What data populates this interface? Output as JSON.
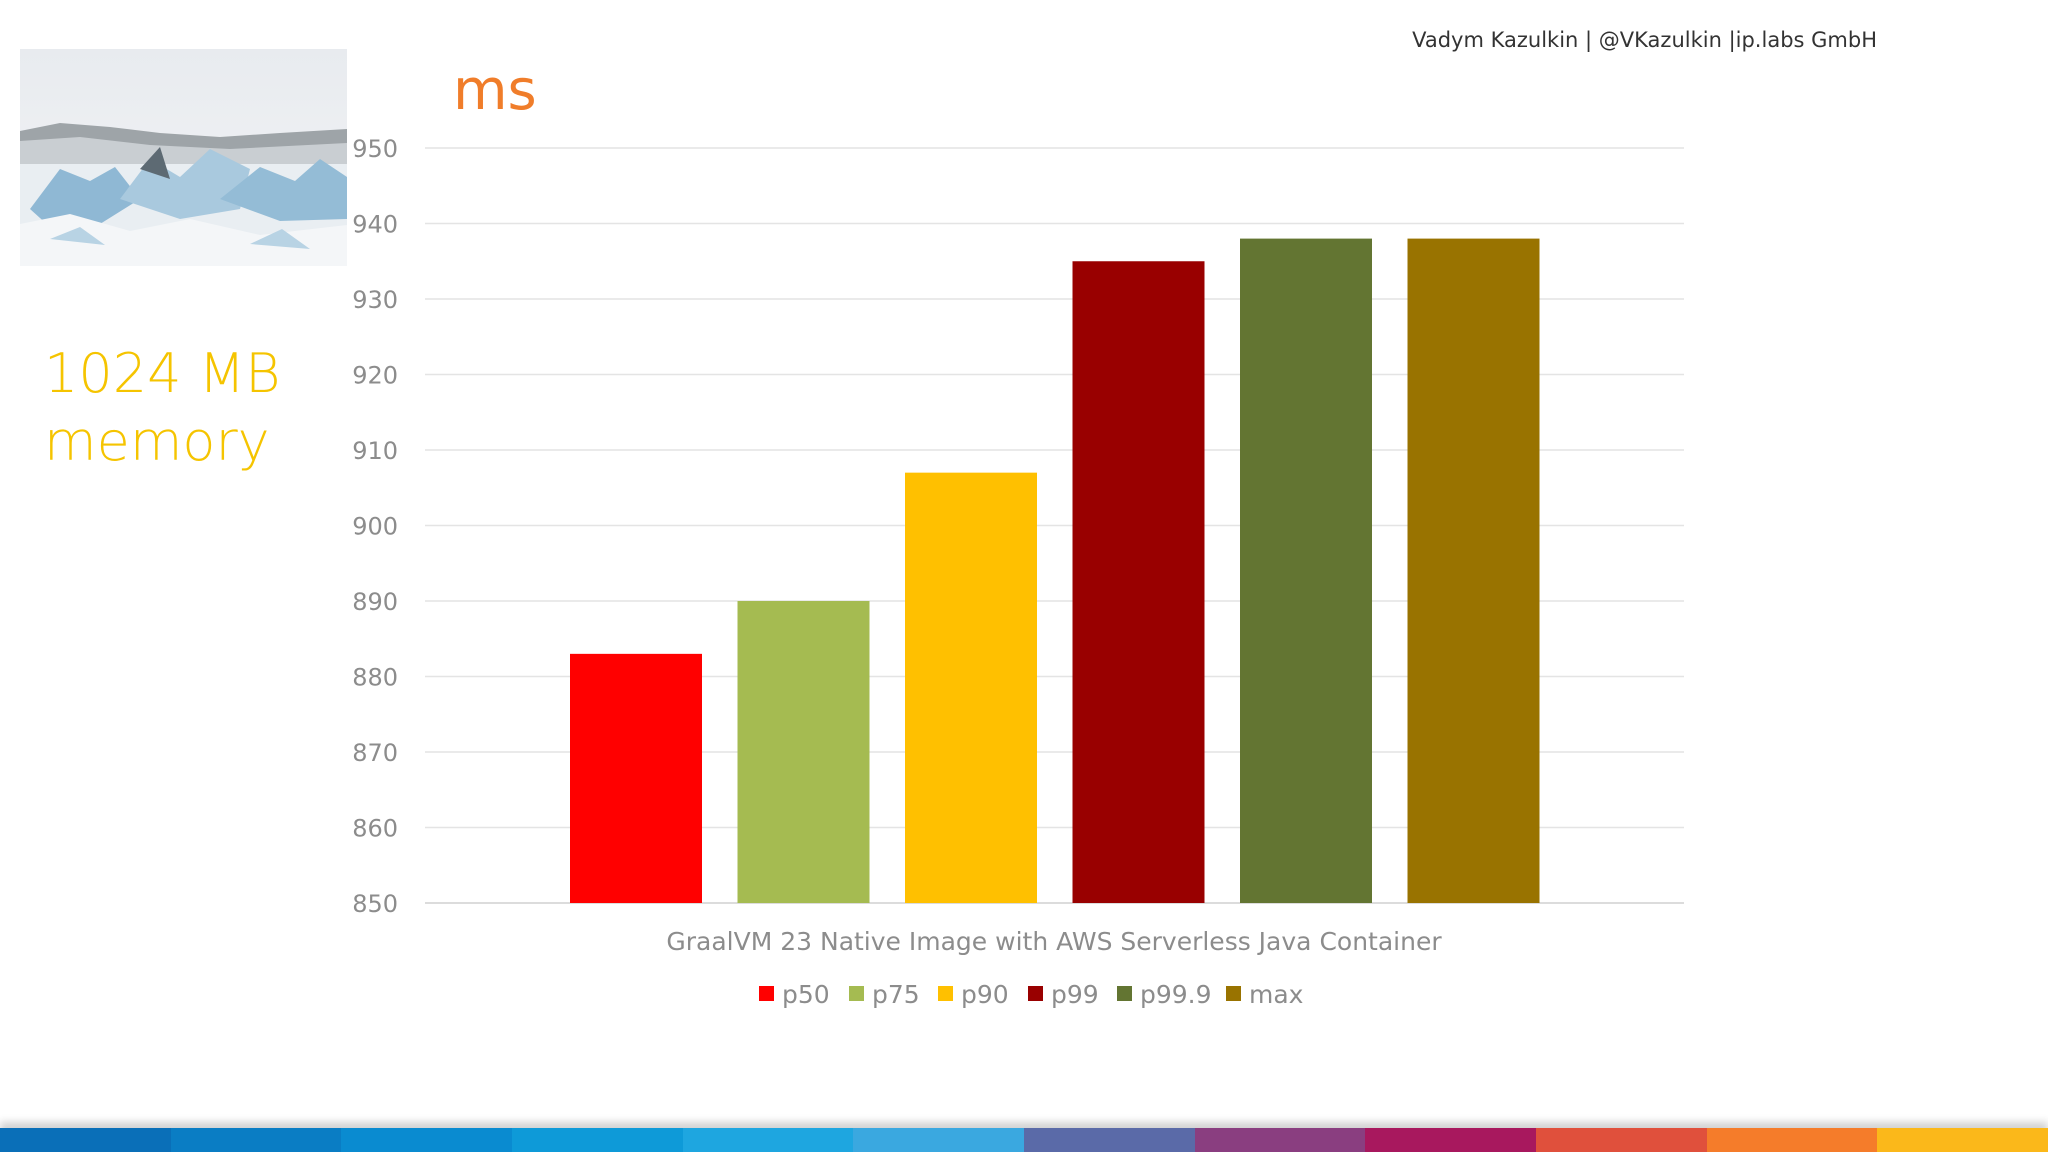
{
  "header": {
    "author": "Vadym Kazulkin | @VKazulkin |ip.labs GmbH"
  },
  "side": {
    "memory_line1": "1024 MB",
    "memory_line2": "memory"
  },
  "chart_data": {
    "type": "bar",
    "ylabel": "ms",
    "xlabel": "GraalVM 23 Native Image with AWS Serverless Java Container",
    "ylim": [
      850,
      950
    ],
    "yticks": [
      850,
      860,
      870,
      880,
      890,
      900,
      910,
      920,
      930,
      940,
      950
    ],
    "grid": true,
    "legend_placement": "bottom",
    "series": [
      {
        "name": "p50",
        "value": 883,
        "color": "#ff0000"
      },
      {
        "name": "p75",
        "value": 890,
        "color": "#a5bb51"
      },
      {
        "name": "p90",
        "value": 907,
        "color": "#ffc000"
      },
      {
        "name": "p99",
        "value": 935,
        "color": "#990000"
      },
      {
        "name": "p99.9",
        "value": 938,
        "color": "#637532"
      },
      {
        "name": "max",
        "value": 938,
        "color": "#997300"
      }
    ]
  },
  "footer": {
    "bar_colors": [
      "#0a6fb8",
      "#0a7dc4",
      "#0a8bd0",
      "#0e9ad8",
      "#1ea6e0",
      "#3aa8e0",
      "#5a6aa8",
      "#8a3e80",
      "#a8185e",
      "#e0503c",
      "#f57c2a",
      "#fbb81a"
    ]
  }
}
